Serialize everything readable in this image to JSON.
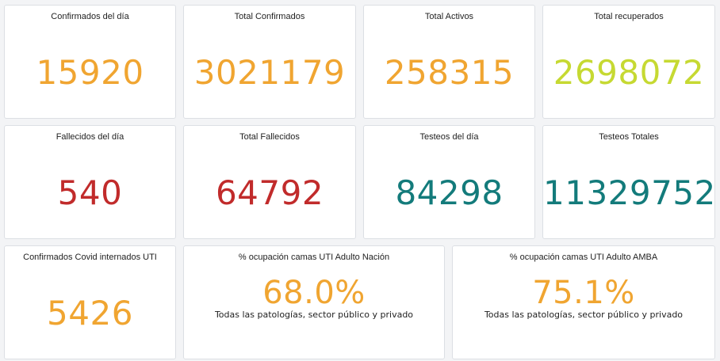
{
  "colors": {
    "orange": "#f0a531",
    "lime": "#c6d932",
    "red": "#c12b2b",
    "teal": "#137b7b"
  },
  "row1": {
    "confirmados_dia": {
      "title": "Confirmados del día",
      "value": "15920"
    },
    "total_confirmados": {
      "title": "Total Confirmados",
      "value": "3021179"
    },
    "total_activos": {
      "title": "Total Activos",
      "value": "258315"
    },
    "total_recuperados": {
      "title": "Total recuperados",
      "value": "2698072"
    }
  },
  "row2": {
    "fallecidos_dia": {
      "title": "Fallecidos del día",
      "value": "540"
    },
    "total_fallecidos": {
      "title": "Total Fallecidos",
      "value": "64792"
    },
    "testeos_dia": {
      "title": "Testeos del día",
      "value": "84298"
    },
    "testeos_totales": {
      "title": "Testeos Totales",
      "value": "11329752"
    }
  },
  "row3": {
    "internados_uti": {
      "title": "Confirmados Covid internados UTI",
      "value": "5426"
    },
    "ocupacion_nacion": {
      "title": "% ocupación camas UTI Adulto Nación",
      "value": "68.0%",
      "subtitle": "Todas las patologías, sector público y privado"
    },
    "ocupacion_amba": {
      "title": "% ocupación camas UTI Adulto AMBA",
      "value": "75.1%",
      "subtitle": "Todas las patologías, sector público y privado"
    }
  }
}
